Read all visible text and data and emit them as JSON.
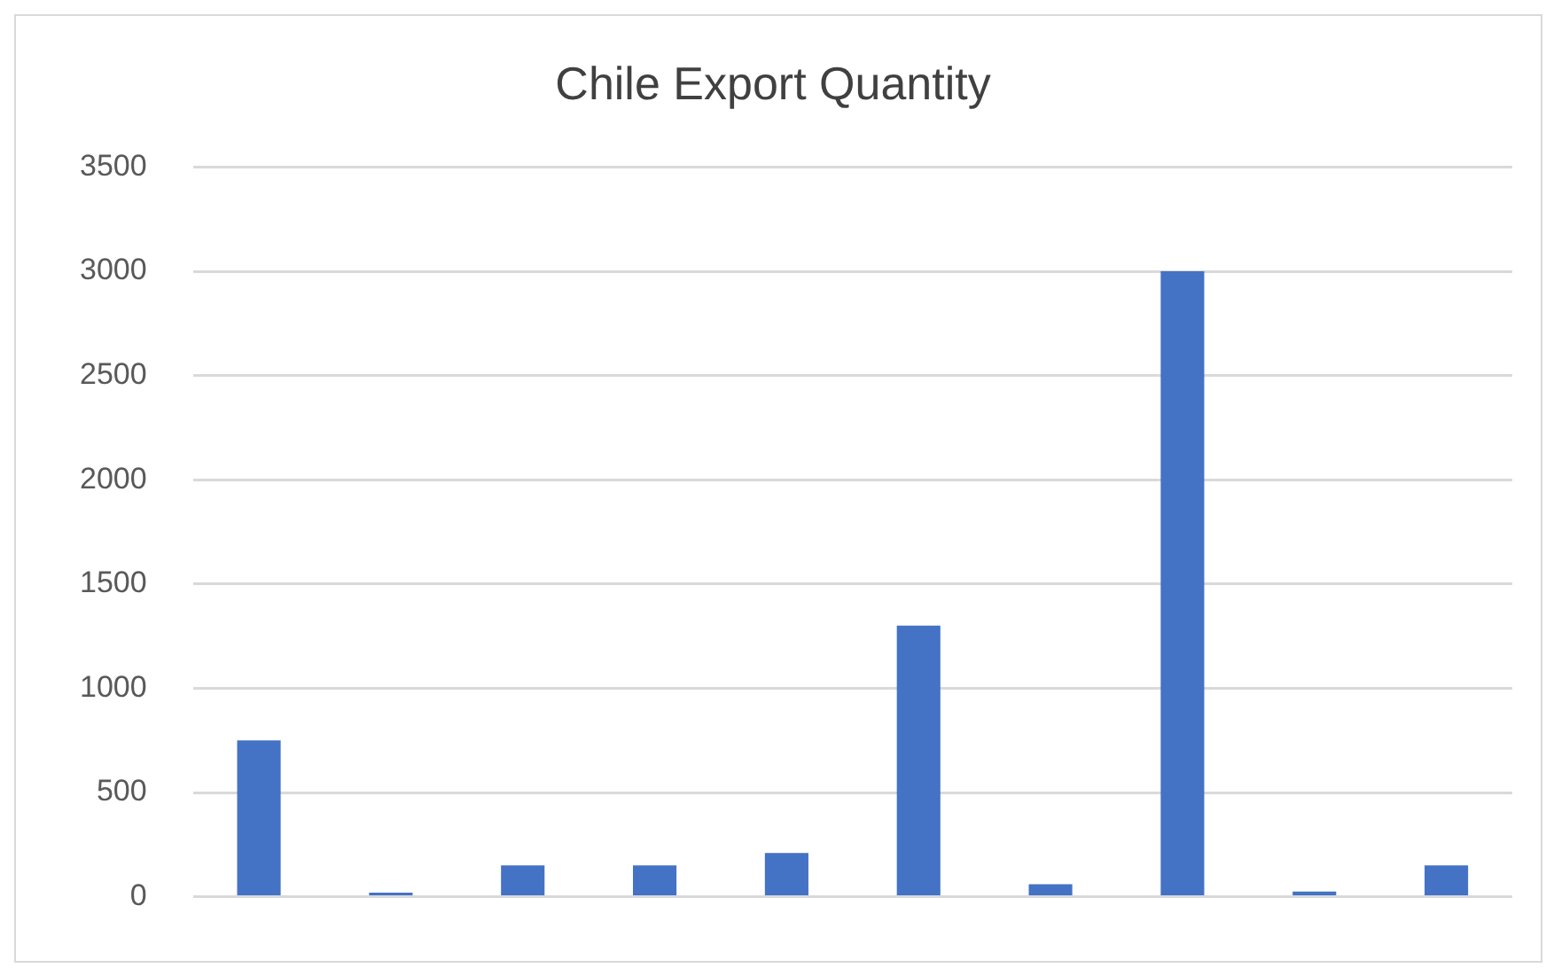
{
  "chart_data": {
    "type": "bar",
    "title": "Chile Export Quantity",
    "categories": [
      null,
      null,
      null,
      null,
      null,
      null,
      null,
      null,
      null,
      null
    ],
    "values": [
      750,
      20,
      150,
      150,
      210,
      1300,
      60,
      3000,
      25,
      150
    ],
    "color": "#4472c4",
    "ylim": [
      0,
      3500
    ],
    "yticks": [
      0,
      500,
      1000,
      1500,
      2000,
      2500,
      3000,
      3500
    ],
    "grid": "y"
  }
}
